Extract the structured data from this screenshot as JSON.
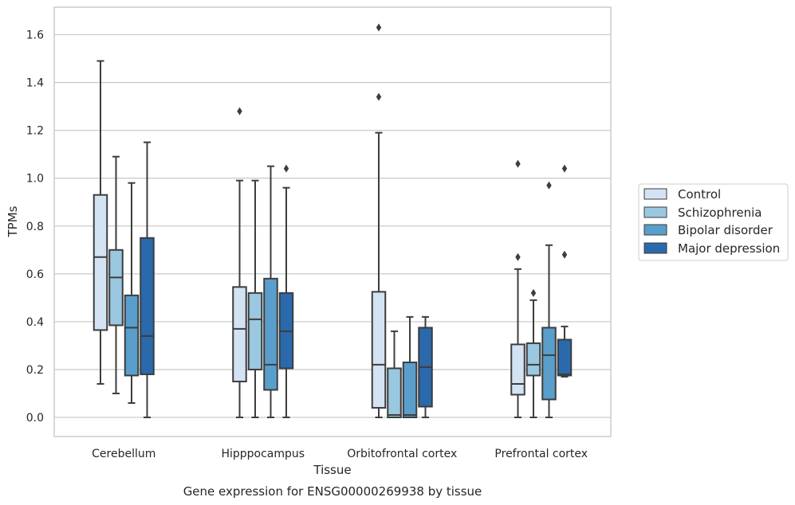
{
  "caption": "Gene expression for ENSG00000269938 by tissue",
  "chart_data": {
    "type": "box",
    "title": "",
    "xlabel": "Tissue",
    "ylabel": "TPMs",
    "ylim": [
      -0.08,
      1.72
    ],
    "yticks": [
      0.0,
      0.2,
      0.4,
      0.6,
      0.8,
      1.0,
      1.2,
      1.4,
      1.6
    ],
    "ytick_labels": [
      "0.0",
      "0.2",
      "0.4",
      "0.6",
      "0.8",
      "1.0",
      "1.2",
      "1.4",
      "1.6"
    ],
    "grid": "horizontal",
    "legend_position": "right",
    "categories": [
      "Cerebellum",
      "Hipppocampus",
      "Orbitofrontal cortex",
      "Prefrontal cortex"
    ],
    "series": [
      {
        "name": "Control",
        "color": "#d3e3f3",
        "boxes": [
          {
            "whislo": 0.14,
            "q1": 0.365,
            "med": 0.67,
            "q3": 0.93,
            "whishi": 1.49,
            "fliers": []
          },
          {
            "whislo": 0.0,
            "q1": 0.15,
            "med": 0.37,
            "q3": 0.545,
            "whishi": 0.99,
            "fliers": [
              1.28
            ]
          },
          {
            "whislo": 0.0,
            "q1": 0.04,
            "med": 0.22,
            "q3": 0.525,
            "whishi": 1.19,
            "fliers": [
              1.34,
              1.63
            ]
          },
          {
            "whislo": 0.0,
            "q1": 0.095,
            "med": 0.14,
            "q3": 0.305,
            "whishi": 0.62,
            "fliers": [
              0.67,
              1.06
            ]
          }
        ]
      },
      {
        "name": "Schizophrenia",
        "color": "#9ac8e0",
        "boxes": [
          {
            "whislo": 0.1,
            "q1": 0.385,
            "med": 0.585,
            "q3": 0.7,
            "whishi": 1.09,
            "fliers": []
          },
          {
            "whislo": 0.0,
            "q1": 0.2,
            "med": 0.41,
            "q3": 0.52,
            "whishi": 0.99,
            "fliers": []
          },
          {
            "whislo": 0.0,
            "q1": 0.0,
            "med": 0.01,
            "q3": 0.205,
            "whishi": 0.36,
            "fliers": []
          },
          {
            "whislo": 0.0,
            "q1": 0.175,
            "med": 0.22,
            "q3": 0.31,
            "whishi": 0.49,
            "fliers": [
              0.52
            ]
          }
        ]
      },
      {
        "name": "Bipolar disorder",
        "color": "#5a9ecc",
        "boxes": [
          {
            "whislo": 0.06,
            "q1": 0.175,
            "med": 0.375,
            "q3": 0.51,
            "whishi": 0.98,
            "fliers": []
          },
          {
            "whislo": 0.0,
            "q1": 0.115,
            "med": 0.22,
            "q3": 0.58,
            "whishi": 1.05,
            "fliers": []
          },
          {
            "whislo": 0.0,
            "q1": 0.0,
            "med": 0.01,
            "q3": 0.23,
            "whishi": 0.42,
            "fliers": []
          },
          {
            "whislo": 0.0,
            "q1": 0.075,
            "med": 0.26,
            "q3": 0.375,
            "whishi": 0.72,
            "fliers": [
              0.97
            ]
          }
        ]
      },
      {
        "name": "Major depression",
        "color": "#2a69ac",
        "boxes": [
          {
            "whislo": 0.0,
            "q1": 0.18,
            "med": 0.34,
            "q3": 0.75,
            "whishi": 1.15,
            "fliers": []
          },
          {
            "whislo": 0.0,
            "q1": 0.205,
            "med": 0.36,
            "q3": 0.52,
            "whishi": 0.96,
            "fliers": [
              1.04
            ]
          },
          {
            "whislo": 0.0,
            "q1": 0.045,
            "med": 0.21,
            "q3": 0.375,
            "whishi": 0.42,
            "fliers": []
          },
          {
            "whislo": 0.17,
            "q1": 0.175,
            "med": 0.18,
            "q3": 0.325,
            "whishi": 0.38,
            "fliers": [
              0.68,
              1.04
            ]
          }
        ]
      }
    ]
  }
}
